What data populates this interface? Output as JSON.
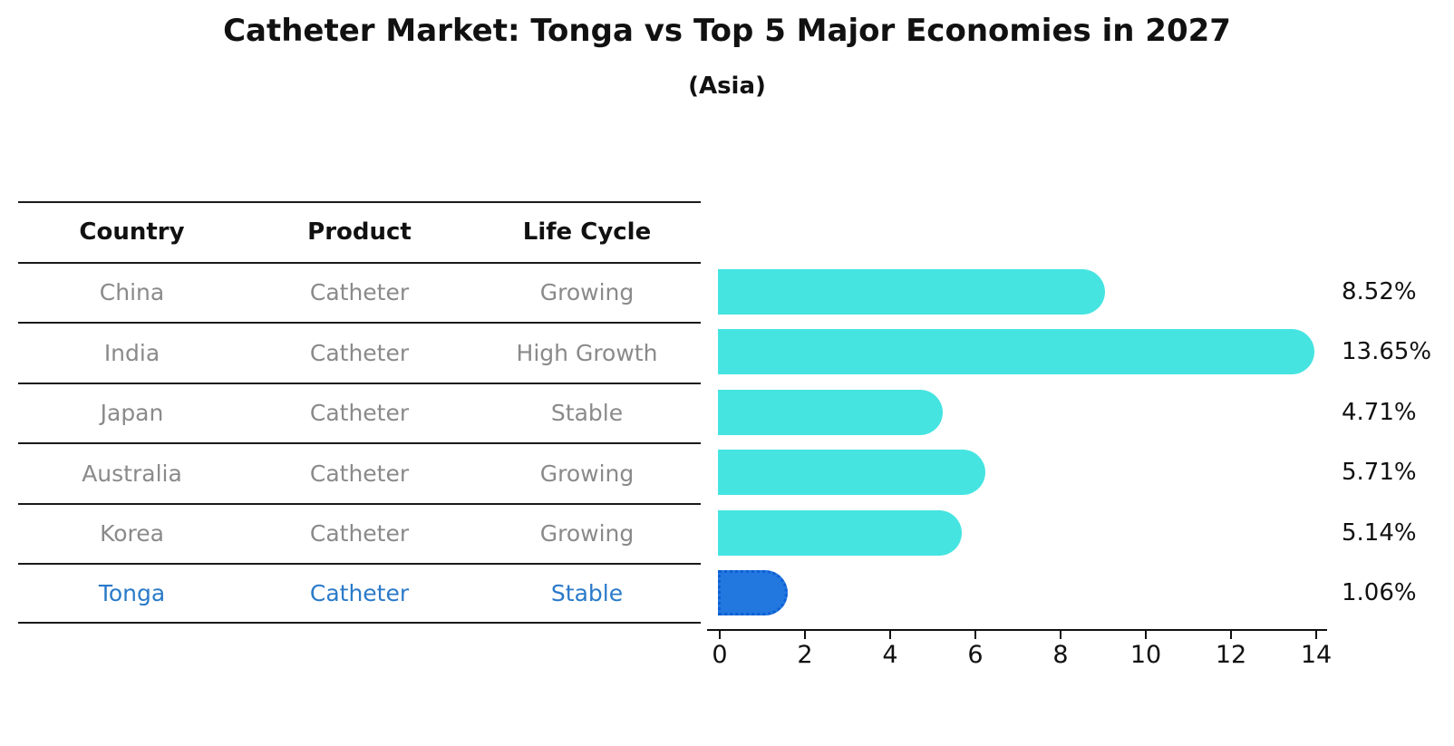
{
  "title": "Catheter Market: Tonga vs Top 5 Major Economies in 2027",
  "subtitle": "(Asia)",
  "table": {
    "headers": {
      "country": "Country",
      "product": "Product",
      "life_cycle": "Life Cycle"
    },
    "rows": [
      {
        "country": "China",
        "product": "Catheter",
        "life_cycle": "Growing"
      },
      {
        "country": "India",
        "product": "Catheter",
        "life_cycle": "High Growth"
      },
      {
        "country": "Japan",
        "product": "Catheter",
        "life_cycle": "Stable"
      },
      {
        "country": "Australia",
        "product": "Catheter",
        "life_cycle": "Growing"
      },
      {
        "country": "Korea",
        "product": "Catheter",
        "life_cycle": "Growing"
      },
      {
        "country": "Tonga",
        "product": "Catheter",
        "life_cycle": "Stable"
      }
    ],
    "highlighted_country": "Tonga"
  },
  "chart_data": {
    "type": "bar",
    "orientation": "horizontal",
    "title": "Catheter Market: Tonga vs Top 5 Major Economies in 2027",
    "subtitle": "(Asia)",
    "categories": [
      "China",
      "India",
      "Japan",
      "Australia",
      "Korea",
      "Tonga"
    ],
    "values": [
      8.52,
      13.65,
      4.71,
      5.71,
      5.14,
      1.06
    ],
    "value_labels": [
      "8.52%",
      "13.65%",
      "4.71%",
      "5.71%",
      "5.14%",
      "1.06%"
    ],
    "xlim": [
      0,
      14
    ],
    "x_ticks": [
      "0",
      "2",
      "4",
      "6",
      "8",
      "10",
      "12",
      "14"
    ],
    "grid": false,
    "legend": "none",
    "highlight_index": 5,
    "colors": {
      "bar_default": "#45e4e1",
      "bar_highlight": "#2278de",
      "bar_highlight_border": "#0d5ed6",
      "highlight_text": "#2a7ac9",
      "row_text": "#8a8a8a",
      "header_text": "#111111"
    }
  }
}
